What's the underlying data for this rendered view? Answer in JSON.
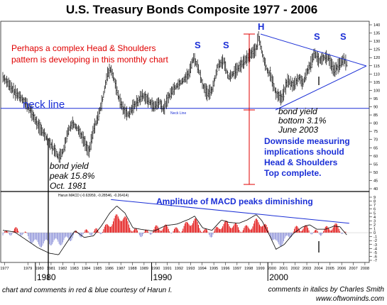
{
  "page": {
    "title": "U.S. Treasury Bonds Composite  1977 -  2006",
    "credit_left": "chart and comments in red & blue courtesy of Harun I.",
    "credit_right_1": "comments in italics by Charles Smith",
    "credit_right_2": "www.oftwominds.com"
  },
  "annotations": {
    "red_note_1": "Perhaps a complex Head & Shoulders",
    "red_note_2": "pattern is developing in this monthly chart",
    "neck_line": "neck line",
    "neck_line_small": "Neck Line",
    "head": "H",
    "shoulder": "S",
    "yield_low_1": "bond yield",
    "yield_low_2": "bottom  3.1%",
    "yield_low_3": "June 2003",
    "yield_high_1": "bond yield",
    "yield_high_2": "peak 15.8%",
    "yield_high_3": "Oct. 1981",
    "downside_1": "Downside measuring",
    "downside_2": "implications should",
    "downside_3": "Head & Shoulders",
    "downside_4": "Top complete.",
    "macd_note": "Amplitude of MACD peaks diminishing",
    "macd_label": "Harun MACD (-0.63959, -0.28546, -0.26414)"
  },
  "colors": {
    "price": "#000000",
    "neckline": "#1b2fd6",
    "trend": "#1b2fd6",
    "measure": "#e00000",
    "hist_pos": "#e00000",
    "hist_neg": "#8a8fd8"
  },
  "chart_data": {
    "type": "line",
    "title": "U.S. Treasury Bonds Composite  1977 -  2006",
    "price_axis": {
      "range": [
        40,
        140
      ],
      "ticks": [
        140,
        135,
        130,
        125,
        120,
        115,
        110,
        105,
        100,
        95,
        90,
        85,
        80,
        75,
        70,
        65,
        60,
        55,
        50,
        45,
        40
      ]
    },
    "macd_axis": {
      "range": [
        -7,
        9
      ],
      "ticks": [
        9,
        8,
        7,
        6,
        5,
        4,
        3,
        2,
        1,
        0,
        -1,
        -2,
        -3,
        -4,
        -5,
        -6,
        -7
      ]
    },
    "x_axis": {
      "year_ticks": [
        "1977",
        "1979",
        "1980",
        "1981",
        "1982",
        "1983",
        "1984",
        "1985",
        "1986",
        "1987",
        "1988",
        "1989",
        "1990",
        "1991",
        "1992",
        "1993",
        "1994",
        "1995",
        "1996",
        "1997",
        "1998",
        "1999",
        "2000",
        "2001",
        "2002",
        "2003",
        "2004",
        "2005",
        "2006",
        "2007",
        "2008"
      ],
      "decades": [
        "1980",
        "1990",
        "2000"
      ]
    },
    "neckline_value": 89,
    "series": [
      {
        "x": [
          1977.0,
          1977.5,
          1978.0,
          1978.5,
          1979.0,
          1979.5,
          1980.0,
          1980.5,
          1981.0,
          1981.5,
          1981.8,
          1982.2,
          1982.6,
          1983.0,
          1983.5,
          1984.0,
          1984.4,
          1984.8,
          1985.2,
          1985.6,
          1986.0,
          1986.3,
          1986.6,
          1987.0,
          1987.4,
          1987.8,
          1988.2,
          1988.6,
          1989.0,
          1989.5,
          1990.0,
          1990.5,
          1990.8,
          1991.2,
          1991.6,
          1992.0,
          1992.5,
          1993.0,
          1993.4,
          1993.8,
          1994.2,
          1994.6,
          1995.0,
          1995.5,
          1996.0,
          1996.4,
          1996.8,
          1997.3,
          1997.8,
          1998.3,
          1998.8,
          1999.0,
          1999.4,
          1999.8,
          2000.0,
          2000.5,
          2001.0,
          2001.5,
          2002.0,
          2002.5,
          2002.8,
          2003.2,
          2003.5,
          2003.8,
          2004.2,
          2004.6,
          2005.0,
          2005.5,
          2006.0,
          2006.3,
          2006.6
        ],
        "values": [
          108,
          104,
          99,
          96,
          92,
          86,
          79,
          74,
          68,
          63,
          59,
          63,
          75,
          80,
          76,
          69,
          62,
          76,
          84,
          95,
          110,
          113,
          106,
          95,
          88,
          85,
          90,
          93,
          97,
          94,
          90,
          93,
          88,
          95,
          100,
          103,
          106,
          110,
          120,
          114,
          103,
          98,
          100,
          115,
          118,
          108,
          110,
          114,
          118,
          122,
          125,
          133,
          120,
          111,
          110,
          98,
          95,
          106,
          103,
          108,
          104,
          112,
          116,
          123,
          118,
          120,
          120,
          112,
          116,
          119,
          116
        ]
      }
    ],
    "macd_line": {
      "x": [
        1977.0,
        1978.0,
        1979.0,
        1980.0,
        1981.0,
        1981.8,
        1982.5,
        1983.2,
        1984.0,
        1984.8,
        1985.5,
        1986.2,
        1986.8,
        1987.5,
        1988.2,
        1989.0,
        1990.0,
        1991.0,
        1992.0,
        1993.0,
        1993.5,
        1994.2,
        1995.0,
        1995.8,
        1996.5,
        1997.3,
        1998.0,
        1998.8,
        1999.3,
        2000.0,
        2000.5,
        2001.2,
        2002.0,
        2002.8,
        2003.4,
        2004.0,
        2004.8,
        2005.5,
        2006.0,
        2006.6
      ],
      "values": [
        0.6,
        0.2,
        -1.8,
        -3.8,
        -5.2,
        -5.6,
        -2.5,
        0.5,
        -1.2,
        -0.8,
        1.8,
        5.0,
        6.8,
        5.0,
        1.2,
        0.8,
        0.4,
        1.8,
        2.2,
        3.4,
        4.2,
        1.2,
        0.6,
        3.2,
        2.6,
        2.4,
        3.2,
        4.6,
        3.0,
        -1.0,
        -4.2,
        -3.0,
        -0.2,
        1.5,
        2.0,
        0.9,
        0.9,
        1.7,
        1.5,
        -0.6
      ]
    },
    "macd_trend": {
      "x": [
        1986.3,
        2006.8
      ],
      "values": [
        8.4,
        2.4
      ]
    }
  }
}
